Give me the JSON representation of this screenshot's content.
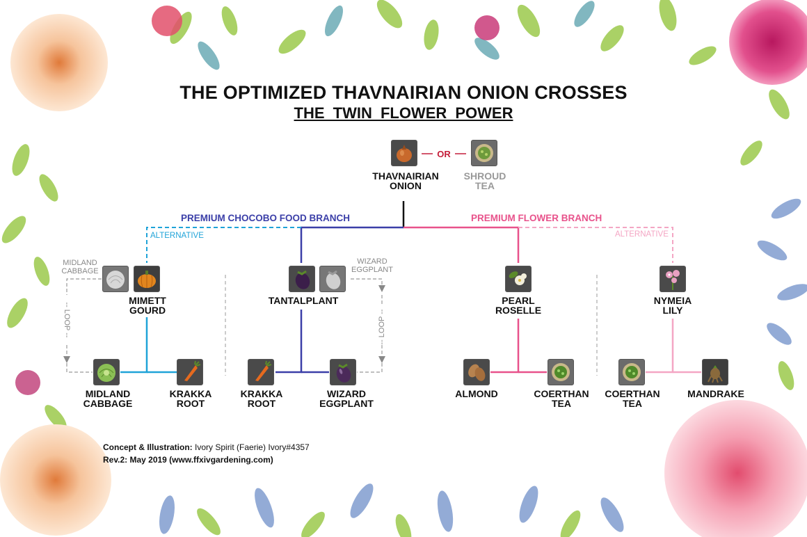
{
  "title": "THE OPTIMIZED THAVNAIRIAN ONION CROSSES",
  "subtitle": "THE TWIN FLOWER POWER",
  "top": {
    "onion_l1": "THAVNAIRIAN",
    "onion_l2": "ONION",
    "or_label": "— OR —",
    "tea_l1": "SHROUD",
    "tea_l2": "TEA"
  },
  "branches": {
    "chocobo": "PREMIUM CHOCOBO FOOD BRANCH",
    "flower": "PREMIUM FLOWER BRANCH",
    "alt_left": "ALTERNATIVE",
    "alt_right": "ALTERNATIVE"
  },
  "group1": {
    "side_l1": "MIDLAND",
    "side_l2": "CABBAGE",
    "parent_l1": "MIMETT",
    "parent_l2": "GOURD",
    "loop": "-- LOOP --",
    "child_a_l1": "MIDLAND",
    "child_a_l2": "CABBAGE",
    "child_b_l1": "KRAKKA",
    "child_b_l2": "ROOT"
  },
  "group2": {
    "parent": "TANTALPLANT",
    "side_l1": "WIZARD",
    "side_l2": "EGGPLANT",
    "loop": "-- LOOP --",
    "child_a_l1": "KRAKKA",
    "child_a_l2": "ROOT",
    "child_b_l1": "WIZARD",
    "child_b_l2": "EGGPLANT"
  },
  "group3": {
    "parent_l1": "PEARL",
    "parent_l2": "ROSELLE",
    "child_a": "ALMOND",
    "child_b_l1": "COERTHAN",
    "child_b_l2": "TEA"
  },
  "group4": {
    "parent_l1": "NYMEIA",
    "parent_l2": "LILY",
    "child_a_l1": "COERTHAN",
    "child_a_l2": "TEA",
    "child_b": "MANDRAKE"
  },
  "credits": {
    "line1_label": "Concept & Illustration:",
    "line1_value": " Ivory Spirit (Faerie) Ivory#4357",
    "line2": "Rev.2: May 2019 (www.ffxivgardening.com)"
  },
  "colors": {
    "chocobo_branch": "#3b3fa8",
    "flower_branch": "#e8528b",
    "alt_left": "#1fa3d8",
    "alt_right": "#f4a6c4",
    "connector_gray": "#999999"
  }
}
